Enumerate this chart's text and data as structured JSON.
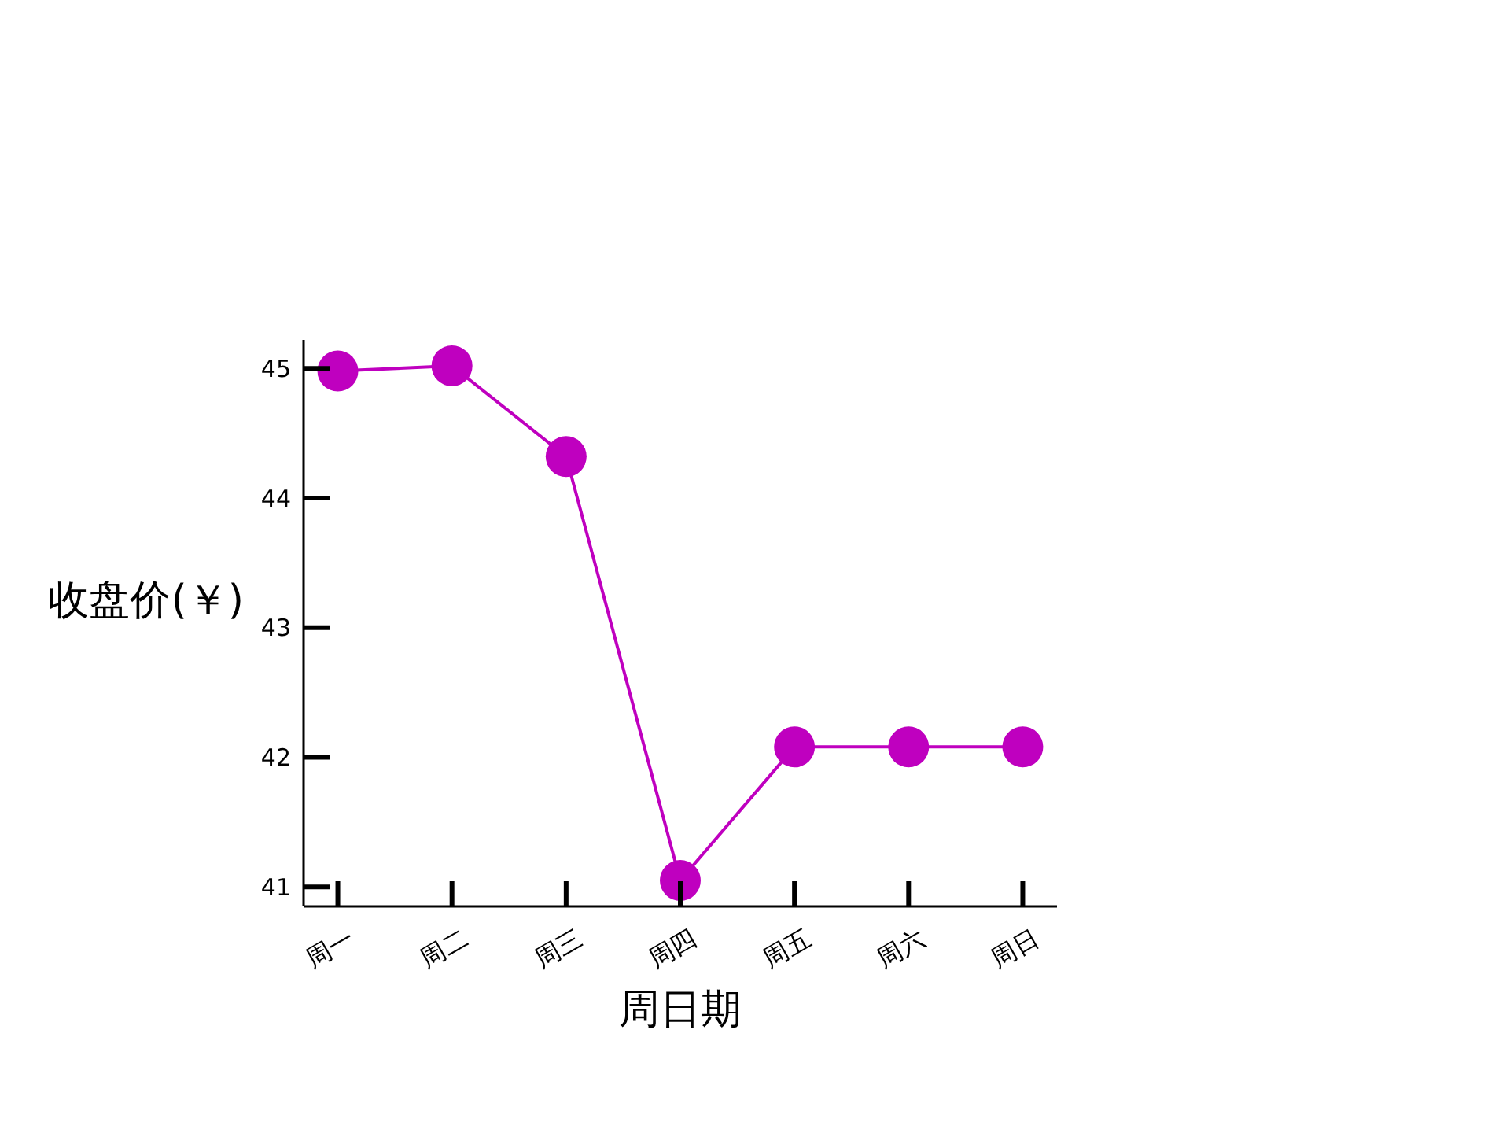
{
  "chart_data": {
    "type": "line",
    "xlabel": "周日期",
    "ylabel": "收盘价(￥)",
    "categories": [
      "周一",
      "周二",
      "周三",
      "周四",
      "周五",
      "周六",
      "周日"
    ],
    "series": [
      {
        "color": "#bf00bf",
        "values": [
          44.98,
          45.02,
          44.32,
          41.05,
          42.08,
          42.08,
          42.08
        ]
      }
    ],
    "ylim": [
      40.85,
      45.22
    ],
    "yticks": [
      41,
      42,
      43,
      44,
      45
    ],
    "marker": "circle",
    "line_style": "solid"
  }
}
